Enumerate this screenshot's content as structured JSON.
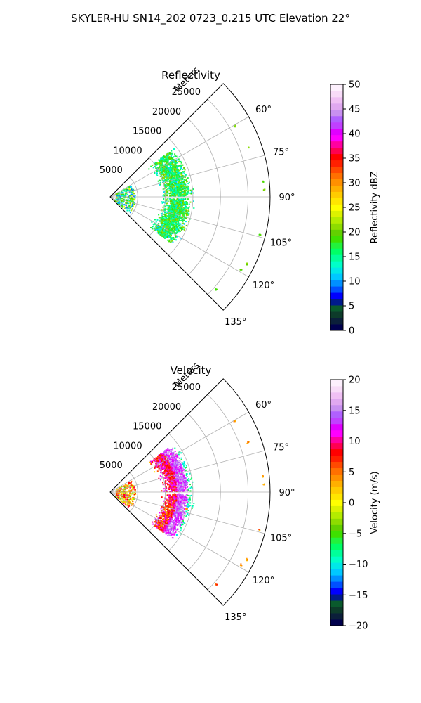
{
  "figure": {
    "suptitle": "SKYLER-HU  SN14_202  0723_0.215 UTC Elevation 22°"
  },
  "chart_data": [
    {
      "type": "polar-sector",
      "title": "Reflectivity",
      "radial_label": "Meters",
      "radial_ticks": [
        5000,
        10000,
        15000,
        20000,
        25000
      ],
      "radial_tick_labels": [
        "5000",
        "10000",
        "15000",
        "20000",
        "25000"
      ],
      "r_max": 29000,
      "theta_ticks_deg": [
        60,
        75,
        90,
        105,
        120,
        135
      ],
      "theta_tick_labels": [
        "60°",
        "75°",
        "90°",
        "105°",
        "120°",
        "135°"
      ],
      "theta_range_deg": [
        45,
        135
      ],
      "grid": true,
      "colorbar": {
        "label": "Reflectivity dBZ",
        "ticks": [
          0,
          5,
          10,
          15,
          20,
          25,
          30,
          35,
          40,
          45,
          50
        ],
        "tick_labels": [
          "0",
          "5",
          "10",
          "15",
          "20",
          "25",
          "30",
          "35",
          "40",
          "45",
          "50"
        ],
        "range": [
          0,
          50
        ],
        "colors": [
          "#00004d",
          "#0b1f3a",
          "#0d3b2a",
          "#0a5a2d",
          "#001a8c",
          "#0000ff",
          "#0050ff",
          "#0090ff",
          "#00c8ff",
          "#00e8e8",
          "#00ffc8",
          "#00ff9a",
          "#00ff66",
          "#22f23c",
          "#3ee000",
          "#62d000",
          "#8edc00",
          "#b4ec00",
          "#dcf200",
          "#ffff00",
          "#ffe600",
          "#ffcc00",
          "#ffb000",
          "#ff9000",
          "#ff7000",
          "#ff4a00",
          "#ff2000",
          "#ff0000",
          "#ff0050",
          "#ff00a0",
          "#ff00ff",
          "#e000ff",
          "#c040ff",
          "#b060ff",
          "#c890f0",
          "#e0a8f0",
          "#f0c0f4",
          "#f8dcf8",
          "#fdf0fd"
        ]
      }
    },
    {
      "type": "polar-sector",
      "title": "Velocity",
      "radial_label": "Meters",
      "radial_ticks": [
        5000,
        10000,
        15000,
        20000,
        25000
      ],
      "radial_tick_labels": [
        "5000",
        "10000",
        "15000",
        "20000",
        "25000"
      ],
      "r_max": 29000,
      "theta_ticks_deg": [
        60,
        75,
        90,
        105,
        120,
        135
      ],
      "theta_tick_labels": [
        "60°",
        "75°",
        "90°",
        "105°",
        "120°",
        "135°"
      ],
      "theta_range_deg": [
        45,
        135
      ],
      "grid": true,
      "colorbar": {
        "label": "Velocity (m/s)",
        "ticks": [
          -20,
          -15,
          -10,
          -5,
          0,
          5,
          10,
          15,
          20
        ],
        "tick_labels": [
          "−20",
          "−15",
          "−10",
          "−5",
          "0",
          "5",
          "10",
          "15",
          "20"
        ],
        "range": [
          -20,
          20
        ],
        "colors": [
          "#00004d",
          "#0b1f3a",
          "#0d3b2a",
          "#0a5a2d",
          "#001a8c",
          "#0000ff",
          "#0050ff",
          "#0090ff",
          "#00c8ff",
          "#00e8e8",
          "#00ffc8",
          "#00ff9a",
          "#00ff66",
          "#22f23c",
          "#3ee000",
          "#62d000",
          "#8edc00",
          "#b4ec00",
          "#dcf200",
          "#ffff00",
          "#ffe600",
          "#ffcc00",
          "#ffb000",
          "#ff9000",
          "#ff7000",
          "#ff4a00",
          "#ff2000",
          "#ff0000",
          "#ff0050",
          "#ff00a0",
          "#ff00ff",
          "#e000ff",
          "#c040ff",
          "#b060ff",
          "#c890f0",
          "#e0a8f0",
          "#f0c0f4",
          "#f8dcf8",
          "#fdf0fd"
        ]
      }
    }
  ]
}
